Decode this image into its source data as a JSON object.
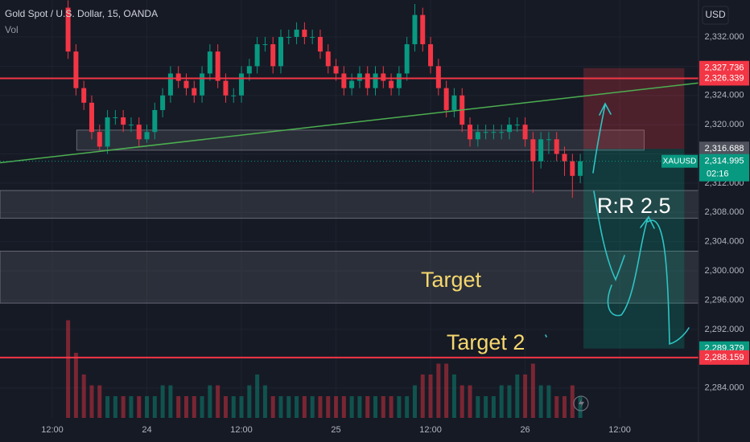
{
  "chart_data": {
    "type": "candlestick",
    "title": "Gold Spot / U.S. Dollar, 15, OANDA",
    "subtitle": "Vol",
    "currency": "USD",
    "up_color": "#089981",
    "down_color": "#f23645",
    "grid": true,
    "x": [
      14,
      15,
      16,
      17,
      18,
      19,
      20,
      21,
      22,
      23,
      24,
      25,
      26,
      27,
      28,
      29,
      30,
      31,
      32,
      33,
      34,
      35,
      36,
      37,
      38,
      39,
      40,
      41,
      42,
      43,
      44,
      45,
      46,
      47,
      48,
      49,
      50,
      51,
      52,
      53,
      54,
      55,
      56,
      57,
      58,
      59,
      60,
      61,
      62,
      63,
      64,
      65,
      66,
      67,
      68,
      69,
      70,
      71,
      72,
      73,
      74,
      75,
      76,
      77,
      78,
      79
    ],
    "open": [
      2336,
      2330,
      2325,
      2323,
      2319,
      2317,
      2321,
      2321,
      2320,
      2320,
      2318,
      2319,
      2322,
      2324,
      2327,
      2326,
      2325,
      2324,
      2327,
      2330,
      2326,
      2324,
      2324,
      2327,
      2328,
      2331,
      2331,
      2328,
      2332,
      2332,
      2333,
      2332,
      2332,
      2330,
      2328,
      2327,
      2325,
      2326,
      2327,
      2325,
      2327,
      2326,
      2325,
      2327,
      2331,
      2335,
      2331,
      2328,
      2325,
      2322,
      2324,
      2320,
      2318,
      2319,
      2319,
      2319,
      2319,
      2320,
      2320,
      2318,
      2315,
      2318,
      2318,
      2316,
      2315,
      2313
    ],
    "high": [
      2337,
      2331,
      2326,
      2324,
      2320,
      2322,
      2322,
      2322,
      2321,
      2321,
      2320,
      2323,
      2325,
      2328,
      2328,
      2327,
      2326,
      2328,
      2331,
      2331,
      2327,
      2325,
      2328,
      2329,
      2332,
      2332,
      2332,
      2333,
      2333,
      2334,
      2334,
      2333,
      2333,
      2331,
      2329,
      2328,
      2327,
      2328,
      2328,
      2328,
      2328,
      2327,
      2328,
      2332,
      2336.5,
      2336,
      2332,
      2329,
      2326,
      2325,
      2325,
      2321,
      2320,
      2320,
      2320,
      2320,
      2321,
      2321,
      2321,
      2319,
      2319,
      2319,
      2319,
      2317,
      2316,
      2316
    ],
    "low": [
      2329,
      2324,
      2322,
      2318,
      2316.5,
      2316,
      2320,
      2319,
      2319,
      2317,
      2317.5,
      2318,
      2321,
      2323,
      2325,
      2324,
      2323,
      2323,
      2326,
      2325,
      2323,
      2323,
      2323,
      2326,
      2327,
      2330,
      2327,
      2327,
      2331,
      2331,
      2331,
      2331,
      2329,
      2327,
      2326,
      2324,
      2324,
      2325,
      2324,
      2324,
      2325,
      2324,
      2324,
      2326,
      2330,
      2330,
      2327,
      2324,
      2321,
      2321,
      2319,
      2317,
      2317,
      2318,
      2318,
      2318,
      2318,
      2319,
      2317,
      2310.7,
      2314,
      2316,
      2315,
      2313,
      2310,
      2312
    ],
    "close": [
      2330,
      2325,
      2323,
      2319,
      2317,
      2321,
      2321,
      2320,
      2320,
      2318,
      2319,
      2322,
      2324,
      2327,
      2326,
      2325,
      2324,
      2327,
      2330,
      2326,
      2324,
      2324,
      2327,
      2328,
      2331,
      2331,
      2328,
      2332,
      2332,
      2333,
      2332,
      2332,
      2330,
      2328,
      2327,
      2325,
      2326,
      2327,
      2325,
      2327,
      2326,
      2325,
      2327,
      2331,
      2335,
      2331,
      2328,
      2325,
      2322,
      2324,
      2320,
      2318,
      2319,
      2319,
      2319,
      2319,
      2320,
      2320,
      2318,
      2315,
      2318,
      2318,
      2316,
      2315,
      2313,
      2315
    ],
    "volume": [
      9,
      6,
      4,
      3,
      3,
      2,
      2,
      2,
      2,
      2,
      2,
      2,
      3,
      3,
      2,
      2,
      2,
      2,
      3,
      3,
      2,
      2,
      2,
      3,
      4,
      3,
      2,
      2,
      2,
      2,
      2,
      2,
      2,
      2,
      2,
      2,
      2,
      2,
      2,
      2,
      2,
      2,
      2,
      2,
      3,
      4,
      4,
      5,
      5,
      4,
      3,
      3,
      2,
      2,
      2,
      3,
      3,
      4,
      4,
      5,
      3,
      3,
      2,
      2,
      3,
      2
    ],
    "xlim": [
      5.36,
      94.0
    ],
    "ylim": [
      2279.9,
      2337.05
    ],
    "xticks": [
      {
        "value": 12,
        "label": "12:00"
      },
      {
        "value": 24,
        "label": "24"
      },
      {
        "value": 36,
        "label": "12:00"
      },
      {
        "value": 48,
        "label": "25"
      },
      {
        "value": 60,
        "label": "12:00"
      },
      {
        "value": 72,
        "label": "26"
      },
      {
        "value": 84,
        "label": "12:00"
      }
    ],
    "yticks": [
      {
        "value": 2284,
        "label": "2,284.000"
      },
      {
        "value": 2288,
        "label": "2,288.000"
      },
      {
        "value": 2292,
        "label": "2,292.000"
      },
      {
        "value": 2296,
        "label": "2,296.000"
      },
      {
        "value": 2300,
        "label": "2,300.000"
      },
      {
        "value": 2304,
        "label": "2,304.000"
      },
      {
        "value": 2308,
        "label": "2,308.000"
      },
      {
        "value": 2312,
        "label": "2,312.000"
      },
      {
        "value": 2316,
        "label": "2,316.000"
      },
      {
        "value": 2320,
        "label": "2,320.000"
      },
      {
        "value": 2324,
        "label": "2,324.000"
      },
      {
        "value": 2328,
        "label": "2,328.000"
      },
      {
        "value": 2332,
        "label": "2,332.000"
      }
    ],
    "zones": [
      {
        "from": 2319.26,
        "to": 2316.51,
        "x": [
          15.1,
          87.1
        ]
      },
      {
        "from": 2311.0,
        "to": 2307.2
      },
      {
        "from": 2302.7,
        "to": 2295.6
      }
    ],
    "trendline": {
      "x": [
        5.36,
        94.0
      ],
      "y": [
        2314.8,
        2325.7
      ],
      "color": "#4caf50"
    },
    "position": {
      "x": [
        79.4,
        92.2
      ]
    },
    "levels": [
      {
        "value": 2327.736,
        "label": "2,327.736",
        "color": "#f23645",
        "role": "stop"
      },
      {
        "value": 2326.339,
        "label": "2,326.339",
        "color": "#f23645",
        "line": true
      },
      {
        "value": 2316.688,
        "label": "2,316.688",
        "color": "#50535e",
        "role": "entry"
      },
      {
        "value": 2314.995,
        "label": "2,314.995",
        "color": "#089981",
        "symbol": "XAUUSD",
        "countdown": "02:16",
        "dotted": true
      },
      {
        "value": 2289.379,
        "label": "2,289.379",
        "color": "#089981",
        "role": "target"
      },
      {
        "value": 2288.159,
        "label": "2,288.159",
        "color": "#f23645",
        "line": true
      }
    ],
    "annotations": [
      {
        "text": "Target",
        "x": 62.6,
        "y": 2298.6,
        "color": "#f5d76e"
      },
      {
        "text": "Target 2",
        "x": 67.0,
        "y": 2290.0,
        "color": "#f5d76e"
      },
      {
        "text": "R:R 2.5",
        "x": 85.8,
        "y": 2308.7,
        "color": "#ffffff"
      }
    ]
  }
}
